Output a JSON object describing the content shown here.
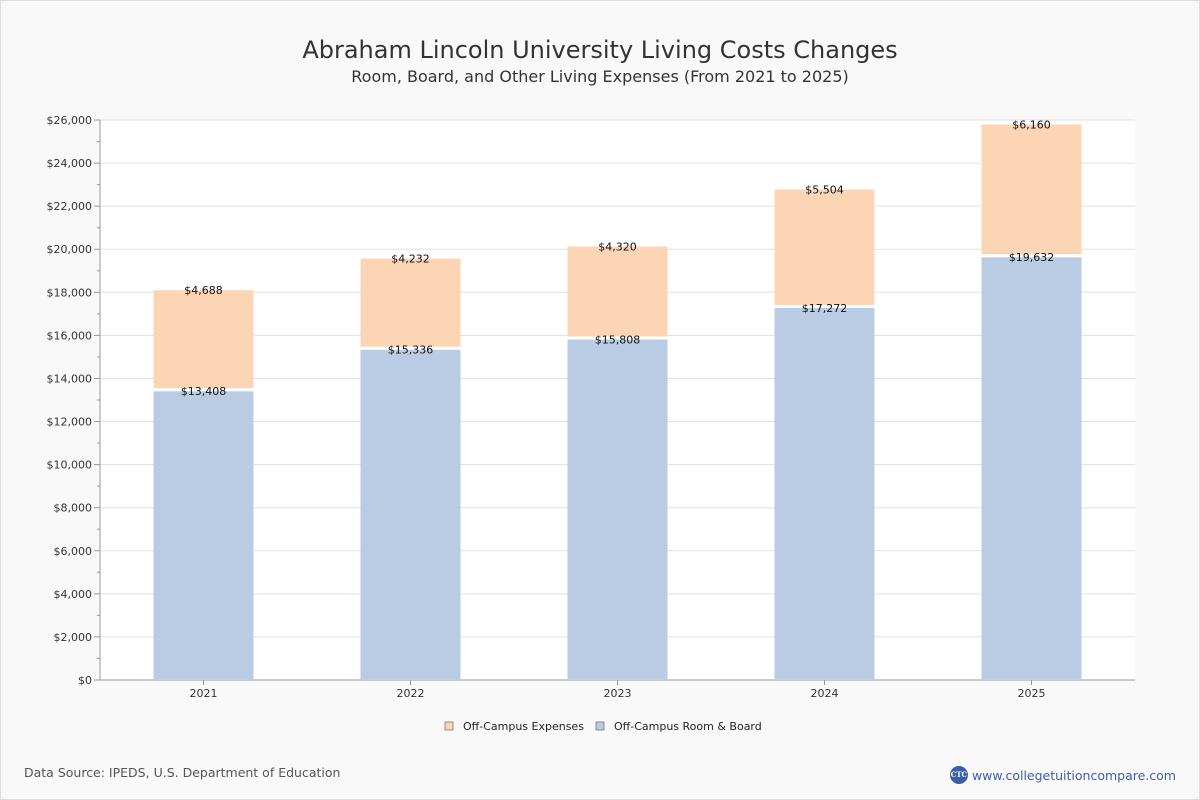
{
  "title": "Abraham Lincoln University Living Costs Changes",
  "subtitle": "Room, Board, and Other Living Expenses (From 2021 to 2025)",
  "footer": {
    "source": "Data Source: IPEDS, U.S. Department of Education",
    "site": "www.collegetuitioncompare.com",
    "logo_text": "CTC"
  },
  "colors": {
    "room_board": "#b9cce4",
    "expenses": "#fcd5b5",
    "grid": "#e0e0e0",
    "axis": "#999999"
  },
  "chart_data": {
    "type": "bar",
    "stacked": true,
    "categories": [
      "2021",
      "2022",
      "2023",
      "2024",
      "2025"
    ],
    "series": [
      {
        "name": "Off-Campus Room & Board",
        "values": [
          13408,
          15336,
          15808,
          17272,
          19632
        ],
        "labels": [
          "$13,408",
          "$15,336",
          "$15,808",
          "$17,272",
          "$19,632"
        ]
      },
      {
        "name": "Off-Campus Expenses",
        "values": [
          4688,
          4232,
          4320,
          5504,
          6160
        ],
        "labels": [
          "$4,688",
          "$4,232",
          "$4,320",
          "$5,504",
          "$6,160"
        ]
      }
    ],
    "ylim": [
      0,
      26000
    ],
    "yticks": [
      "$0",
      "$2,000",
      "$4,000",
      "$6,000",
      "$8,000",
      "$10,000",
      "$12,000",
      "$14,000",
      "$16,000",
      "$18,000",
      "$20,000",
      "$22,000",
      "$24,000",
      "$26,000"
    ],
    "ytick_values": [
      0,
      2000,
      4000,
      6000,
      8000,
      10000,
      12000,
      14000,
      16000,
      18000,
      20000,
      22000,
      24000,
      26000
    ],
    "legend": [
      "Off-Campus Expenses",
      "Off-Campus Room & Board"
    ],
    "legend_position": "bottom",
    "grid": true
  }
}
